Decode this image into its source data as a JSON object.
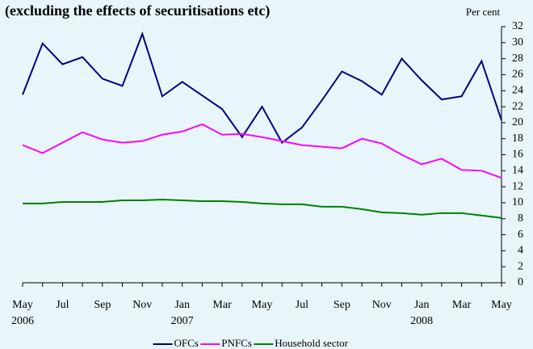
{
  "chart_data": {
    "type": "line",
    "title": "(excluding the effects of securitisations etc)",
    "y_axis_label": "Per cent",
    "categories": [
      [
        "May",
        "2006"
      ],
      null,
      [
        "Jul"
      ],
      null,
      [
        "Sep"
      ],
      null,
      [
        "Nov"
      ],
      null,
      [
        "Jan",
        "2007"
      ],
      null,
      [
        "Mar"
      ],
      null,
      [
        "May"
      ],
      null,
      [
        "Jul"
      ],
      null,
      [
        "Sep"
      ],
      null,
      [
        "Nov"
      ],
      null,
      [
        "Jan",
        "2008"
      ],
      null,
      [
        "Mar"
      ],
      null,
      [
        "May"
      ]
    ],
    "series": [
      {
        "name": "OFCs",
        "color": "#000080",
        "values": [
          23.5,
          29.9,
          27.3,
          28.2,
          25.5,
          24.6,
          31.1,
          23.3,
          25.1,
          23.4,
          21.7,
          18.2,
          22.0,
          17.5,
          19.4,
          22.8,
          26.4,
          25.2,
          23.5,
          28.0,
          25.3,
          22.9,
          23.3,
          27.7,
          20.3
        ]
      },
      {
        "name": "PNFCs",
        "color": "#ff00ff",
        "values": [
          17.2,
          16.2,
          17.5,
          18.8,
          17.9,
          17.5,
          17.7,
          18.5,
          18.9,
          19.8,
          18.5,
          18.6,
          18.2,
          17.7,
          17.2,
          17.0,
          16.8,
          18.0,
          17.4,
          16.0,
          14.8,
          15.5,
          14.1,
          14.0,
          13.1
        ]
      },
      {
        "name": "Household sector",
        "color": "#008000",
        "values": [
          9.9,
          9.9,
          10.1,
          10.1,
          10.1,
          10.3,
          10.3,
          10.4,
          10.3,
          10.2,
          10.2,
          10.1,
          9.9,
          9.8,
          9.8,
          9.5,
          9.5,
          9.2,
          8.8,
          8.7,
          8.5,
          8.7,
          8.7,
          8.4,
          8.1
        ]
      }
    ],
    "ylim": [
      0,
      32
    ],
    "yticks": [
      0,
      2,
      4,
      6,
      8,
      10,
      12,
      14,
      16,
      18,
      20,
      22,
      24,
      26,
      28,
      30,
      32
    ],
    "y_axis_side": "right",
    "legend": "bottom"
  }
}
